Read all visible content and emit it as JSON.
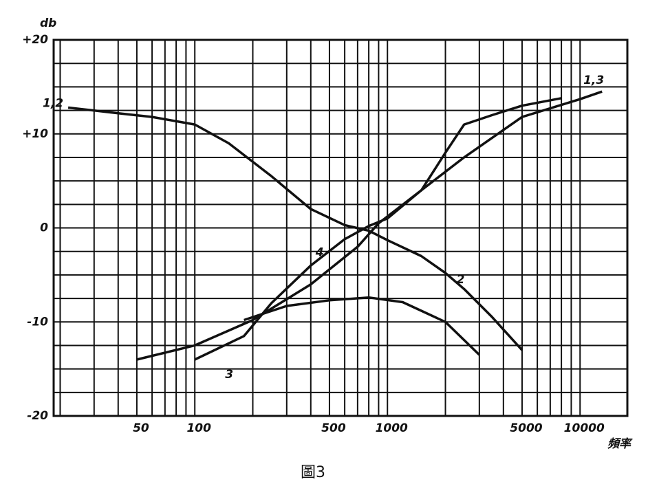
{
  "chart_data": {
    "type": "line",
    "y_label": "db",
    "x_label": "頻率",
    "caption": "圖3",
    "xscale": "log",
    "xlim": [
      18.5,
      17600
    ],
    "ylim": [
      -20,
      20
    ],
    "xticks": [
      50,
      100,
      500,
      1000,
      5000,
      10000
    ],
    "yticks": [
      {
        "value": 20,
        "label": "+20"
      },
      {
        "value": 10,
        "label": "+10"
      },
      0,
      -10,
      -20
    ],
    "xgrid": [
      20,
      30,
      40,
      50,
      60,
      70,
      80,
      90,
      100,
      200,
      300,
      400,
      500,
      600,
      700,
      800,
      900,
      1000,
      2000,
      3000,
      4000,
      5000,
      6000,
      7000,
      8000,
      9000,
      10000
    ],
    "ygrid": [
      -20,
      -17.5,
      -15,
      -12.5,
      -10,
      -7.5,
      -5,
      -2.5,
      0,
      2.5,
      5,
      7.5,
      10,
      12.5,
      15,
      17.5,
      20
    ],
    "series": [
      {
        "name": "1,2",
        "color": "#111111",
        "x": [
          22,
          40,
          60,
          100,
          150,
          250,
          400,
          600,
          800
        ],
        "values": [
          12.8,
          12.2,
          11.8,
          11,
          9,
          5.5,
          2,
          0.3,
          -0.3
        ]
      },
      {
        "name": "2",
        "color": "#111111",
        "x": [
          800,
          1000,
          1500,
          2000,
          2500,
          3500,
          5000
        ],
        "values": [
          -0.3,
          -1.3,
          -3,
          -4.8,
          -6.5,
          -9.5,
          -13
        ]
      },
      {
        "name": "1,3",
        "color": "#111111",
        "x": [
          50,
          100,
          200,
          400,
          700,
          900,
          1500,
          2500,
          5000,
          10000,
          13000
        ],
        "values": [
          -14,
          -12.5,
          -9.8,
          -6,
          -2,
          0.5,
          4,
          7.5,
          11.8,
          13.7,
          14.5
        ]
      },
      {
        "name": "3",
        "color": "#111111",
        "x": [
          100,
          180,
          250,
          400,
          600,
          800,
          1000,
          1500,
          2000,
          2500,
          3500,
          5000,
          8000
        ],
        "values": [
          -14,
          -11.5,
          -8,
          -4,
          -1.2,
          0.2,
          1,
          4,
          8,
          11,
          12,
          13,
          13.8
        ]
      },
      {
        "name": "4",
        "color": "#111111",
        "x": [
          180,
          300,
          500,
          800,
          1200,
          2000,
          3000
        ],
        "values": [
          -9.8,
          -8.3,
          -7.7,
          -7.4,
          -7.9,
          -10,
          -13.5
        ]
      }
    ]
  }
}
